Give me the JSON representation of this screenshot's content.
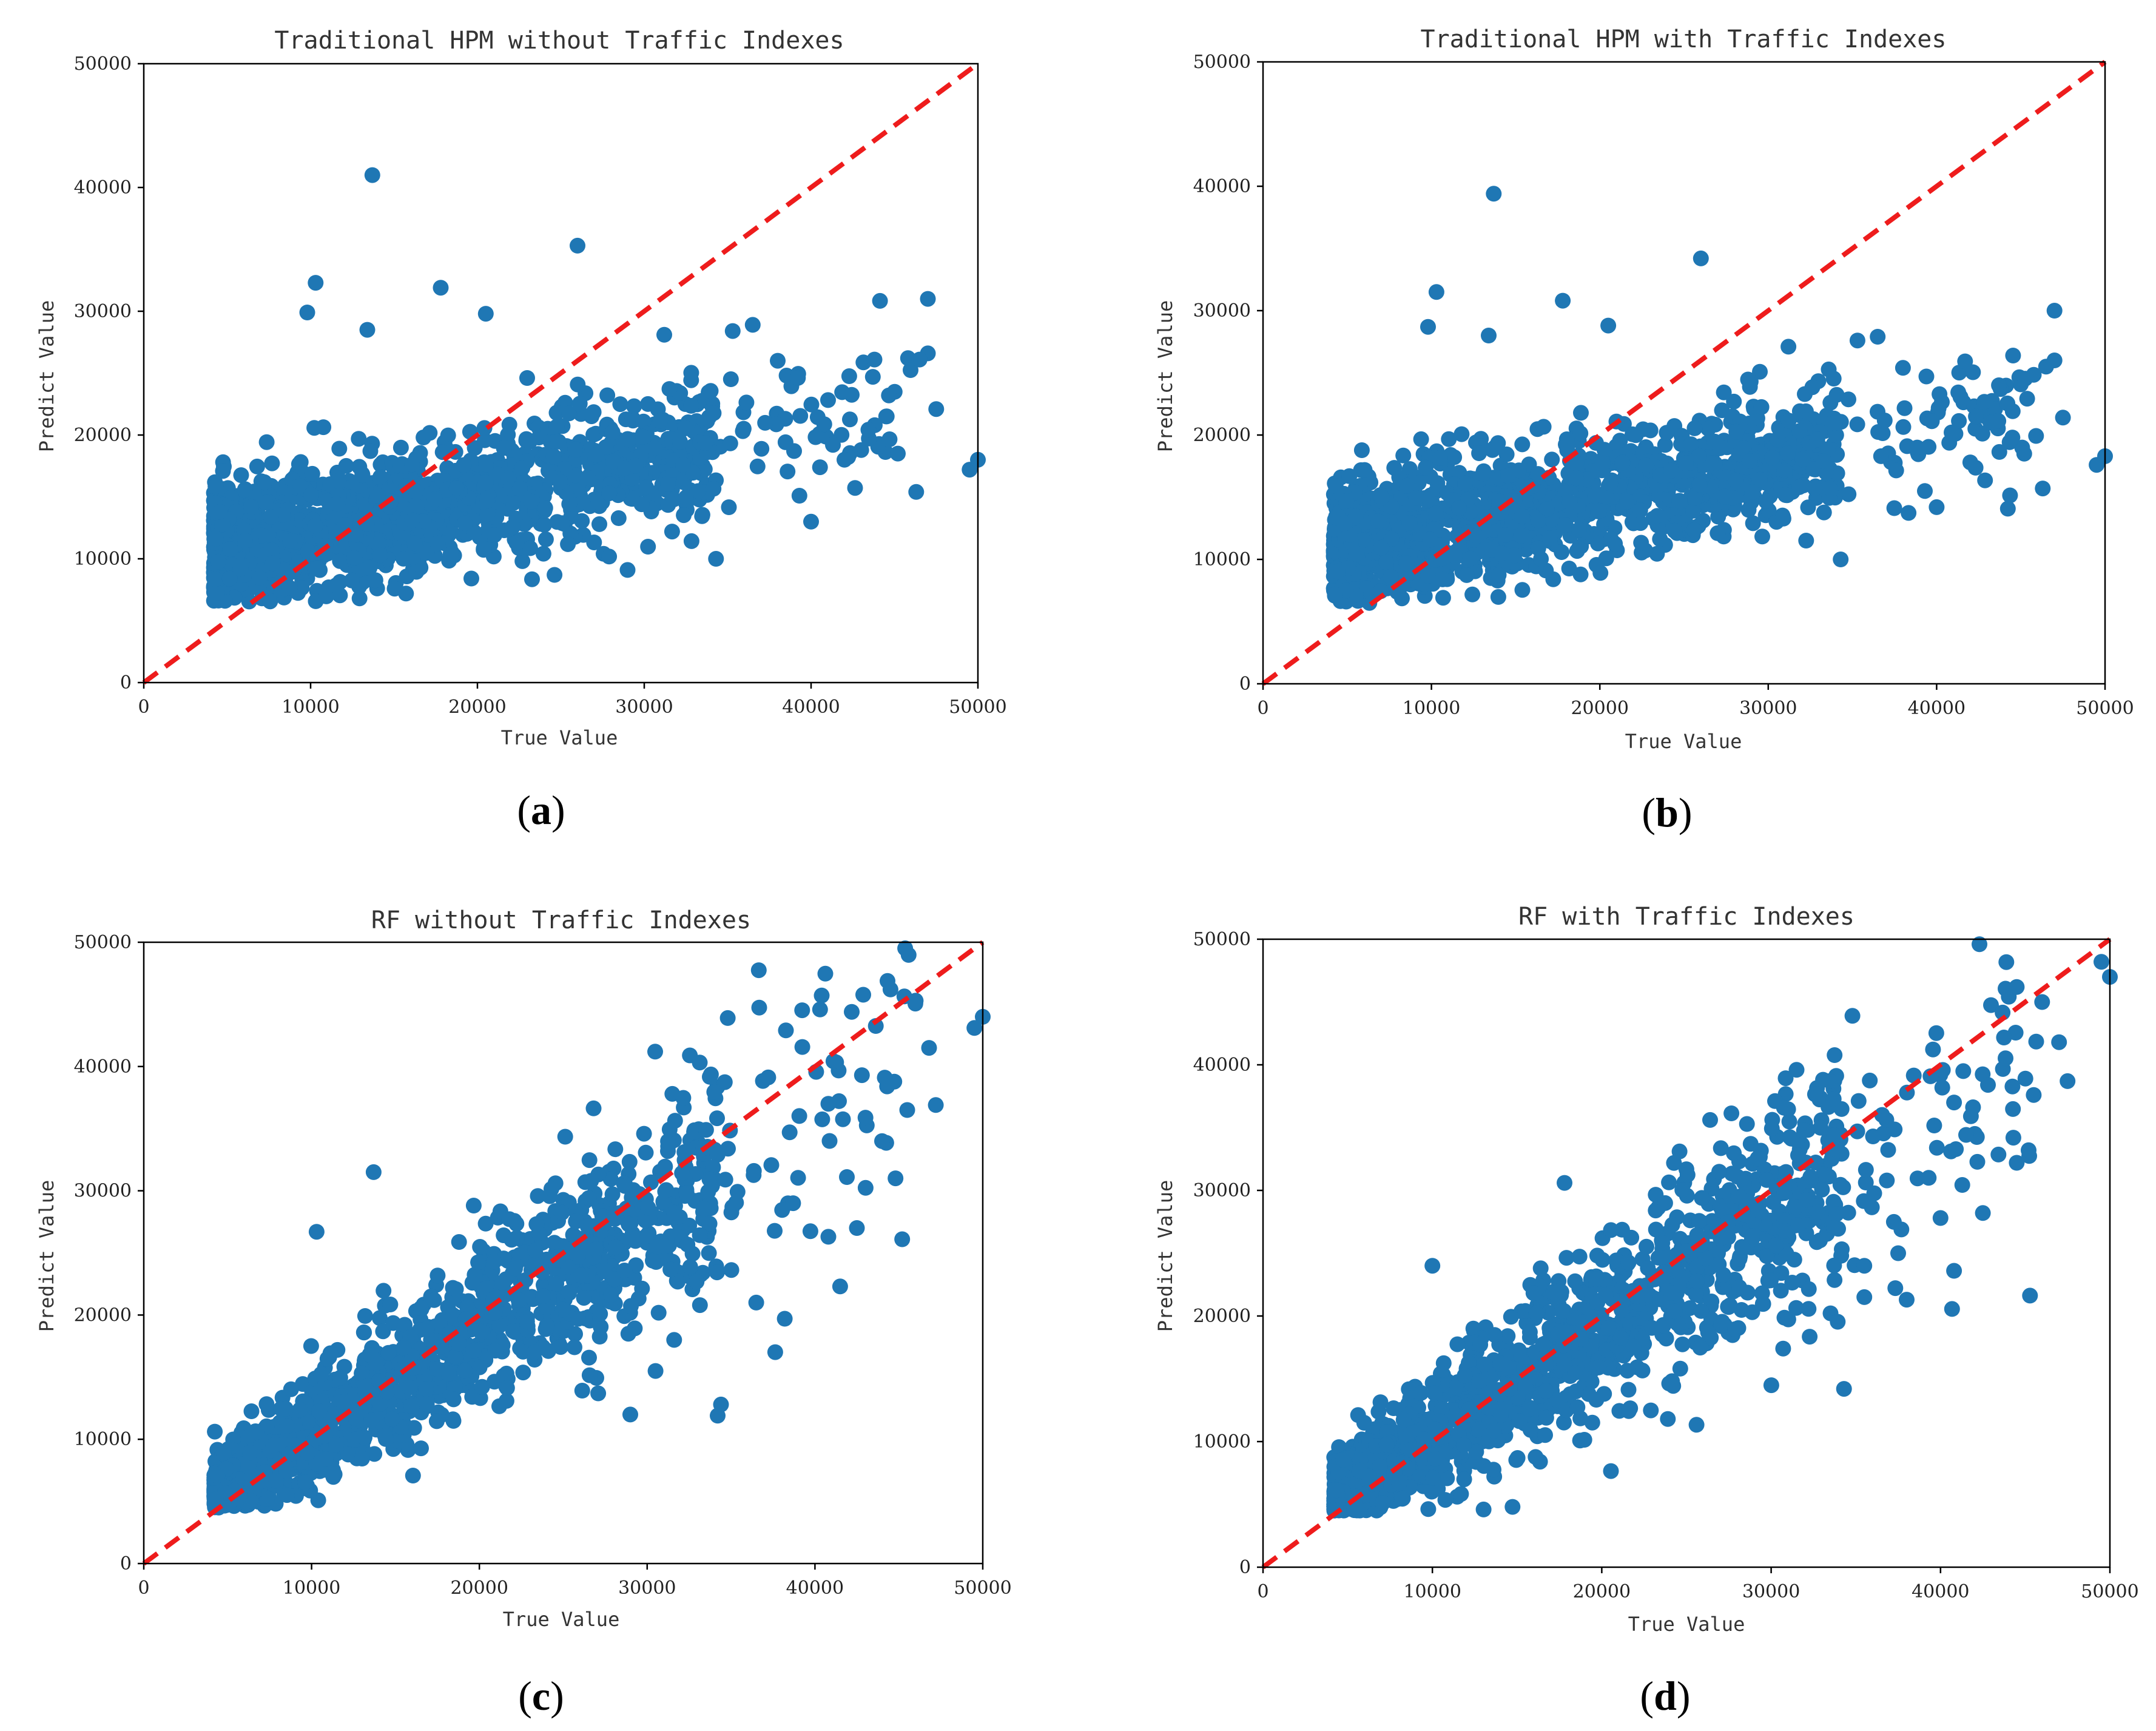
{
  "figure": {
    "panel_labels": [
      {
        "open": "(",
        "letter": "a",
        "close": ")"
      },
      {
        "open": "(",
        "letter": "b",
        "close": ")"
      },
      {
        "open": "(",
        "letter": "c",
        "close": ")"
      },
      {
        "open": "(",
        "letter": "d",
        "close": ")"
      }
    ],
    "colors": {
      "points": "#1f77b4",
      "identity_line": "#ee1c1c"
    }
  },
  "chart_data": [
    {
      "type": "scatter",
      "title": "Traditional HPM without Traffic Indexes",
      "xlabel": "True Value",
      "ylabel": "Predict Value",
      "xlim": [
        0,
        50000
      ],
      "ylim": [
        0,
        50000
      ],
      "xticks": [
        "0",
        "10000",
        "20000",
        "30000",
        "40000",
        "50000"
      ],
      "yticks": [
        "0",
        "10000",
        "20000",
        "30000",
        "40000",
        "50000"
      ],
      "reference_line": {
        "from": [
          0,
          0
        ],
        "to": [
          50000,
          50000
        ],
        "style": "dashed",
        "color": "#ee1c1c"
      },
      "model": "hpm",
      "seed": 11,
      "n_points": 1500,
      "series": [
        {
          "name": "predictions",
          "outliers": [
            [
              13700,
              41000
            ],
            [
              26000,
              35300
            ],
            [
              10300,
              32300
            ],
            [
              17800,
              31900
            ],
            [
              9800,
              29900
            ],
            [
              20500,
              29800
            ],
            [
              13400,
              28500
            ],
            [
              35300,
              28400
            ],
            [
              36500,
              28900
            ],
            [
              31200,
              28100
            ],
            [
              47000,
              31000
            ],
            [
              47000,
              26600
            ],
            [
              46500,
              26100
            ],
            [
              43800,
              26100
            ],
            [
              38000,
              26000
            ],
            [
              47500,
              22100
            ],
            [
              49500,
              17200
            ],
            [
              50000,
              18000
            ],
            [
              34300,
              10000
            ],
            [
              40000,
              13000
            ],
            [
              44500,
              21500
            ],
            [
              42000,
              18000
            ],
            [
              45200,
              18500
            ],
            [
              46300,
              15400
            ],
            [
              43700,
              24700
            ],
            [
              39300,
              15100
            ]
          ]
        }
      ]
    },
    {
      "type": "scatter",
      "title": "Traditional HPM with Traffic Indexes",
      "xlabel": "True Value",
      "ylabel": "Predict Value",
      "xlim": [
        0,
        50000
      ],
      "ylim": [
        0,
        50000
      ],
      "xticks": [
        "0",
        "10000",
        "20000",
        "30000",
        "40000",
        "50000"
      ],
      "yticks": [
        "0",
        "10000",
        "20000",
        "30000",
        "40000",
        "50000"
      ],
      "reference_line": {
        "from": [
          0,
          0
        ],
        "to": [
          50000,
          50000
        ],
        "style": "dashed",
        "color": "#ee1c1c"
      },
      "model": "hpm",
      "seed": 23,
      "n_points": 1500,
      "series": [
        {
          "name": "predictions",
          "outliers": [
            [
              13700,
              39400
            ],
            [
              26000,
              34200
            ],
            [
              10300,
              31500
            ],
            [
              17800,
              30800
            ],
            [
              9800,
              28700
            ],
            [
              20500,
              28800
            ],
            [
              13400,
              28000
            ],
            [
              35300,
              27600
            ],
            [
              36500,
              27900
            ],
            [
              31200,
              27100
            ],
            [
              47000,
              30000
            ],
            [
              47000,
              26000
            ],
            [
              46500,
              25500
            ],
            [
              43800,
              23700
            ],
            [
              38000,
              25400
            ],
            [
              47500,
              21400
            ],
            [
              49500,
              17600
            ],
            [
              50000,
              18300
            ],
            [
              34300,
              10000
            ],
            [
              40000,
              14200
            ],
            [
              44500,
              19800
            ],
            [
              42000,
              17800
            ],
            [
              45200,
              18500
            ],
            [
              46300,
              15700
            ],
            [
              43700,
              24000
            ],
            [
              39300,
              15500
            ]
          ]
        }
      ]
    },
    {
      "type": "scatter",
      "title": "RF without Traffic Indexes",
      "xlabel": "True Value",
      "ylabel": "Predict Value",
      "xlim": [
        0,
        50000
      ],
      "ylim": [
        0,
        50000
      ],
      "xticks": [
        "0",
        "10000",
        "20000",
        "30000",
        "40000",
        "50000"
      ],
      "yticks": [
        "0",
        "10000",
        "20000",
        "30000",
        "40000",
        "50000"
      ],
      "reference_line": {
        "from": [
          0,
          0
        ],
        "to": [
          50000,
          50000
        ],
        "style": "dashed",
        "color": "#ee1c1c"
      },
      "model": "rf",
      "seed": 37,
      "n_points": 1500,
      "series": [
        {
          "name": "predictions",
          "outliers": [
            [
              44500,
              46200
            ],
            [
              46000,
              45300
            ],
            [
              34800,
              43900
            ],
            [
              49500,
              43100
            ],
            [
              50000,
              44000
            ],
            [
              46800,
              41500
            ],
            [
              42800,
              39300
            ],
            [
              44300,
              38400
            ],
            [
              40800,
              37000
            ],
            [
              45500,
              36500
            ],
            [
              47200,
              36900
            ],
            [
              44000,
              34000
            ],
            [
              44800,
              31000
            ],
            [
              42500,
              27000
            ],
            [
              45200,
              26100
            ],
            [
              41500,
              22300
            ],
            [
              38200,
              19700
            ],
            [
              36500,
              21000
            ],
            [
              34400,
              12800
            ],
            [
              34200,
              11900
            ],
            [
              13700,
              31500
            ],
            [
              10300,
              26700
            ],
            [
              31500,
              37800
            ],
            [
              38700,
              29000
            ],
            [
              40800,
              26300
            ],
            [
              30500,
              15500
            ]
          ]
        }
      ]
    },
    {
      "type": "scatter",
      "title": "RF with Traffic Indexes",
      "xlabel": "True Value",
      "ylabel": "Predict Value",
      "xlim": [
        0,
        50000
      ],
      "ylim": [
        0,
        50000
      ],
      "xticks": [
        "0",
        "10000",
        "20000",
        "30000",
        "40000",
        "50000"
      ],
      "yticks": [
        "0",
        "10000",
        "20000",
        "30000",
        "40000",
        "50000"
      ],
      "reference_line": {
        "from": [
          0,
          0
        ],
        "to": [
          50000,
          50000
        ],
        "style": "dashed",
        "color": "#ee1c1c"
      },
      "model": "rf",
      "seed": 53,
      "n_points": 1500,
      "series": [
        {
          "name": "predictions",
          "outliers": [
            [
              49500,
              48200
            ],
            [
              50000,
              47000
            ],
            [
              44500,
              46200
            ],
            [
              46000,
              45000
            ],
            [
              34800,
              43900
            ],
            [
              47000,
              41800
            ],
            [
              47500,
              38700
            ],
            [
              45500,
              37600
            ],
            [
              42800,
              38400
            ],
            [
              40800,
              37000
            ],
            [
              44300,
              34200
            ],
            [
              45200,
              33200
            ],
            [
              44500,
              32200
            ],
            [
              39300,
              31000
            ],
            [
              40000,
              27800
            ],
            [
              42500,
              28200
            ],
            [
              40800,
              23600
            ],
            [
              38000,
              21300
            ],
            [
              35500,
              21500
            ],
            [
              34300,
              14200
            ],
            [
              17800,
              30600
            ],
            [
              31500,
              39600
            ],
            [
              37500,
              25000
            ],
            [
              35500,
              24000
            ],
            [
              23900,
              11800
            ],
            [
              10000,
              24000
            ]
          ]
        }
      ]
    }
  ]
}
